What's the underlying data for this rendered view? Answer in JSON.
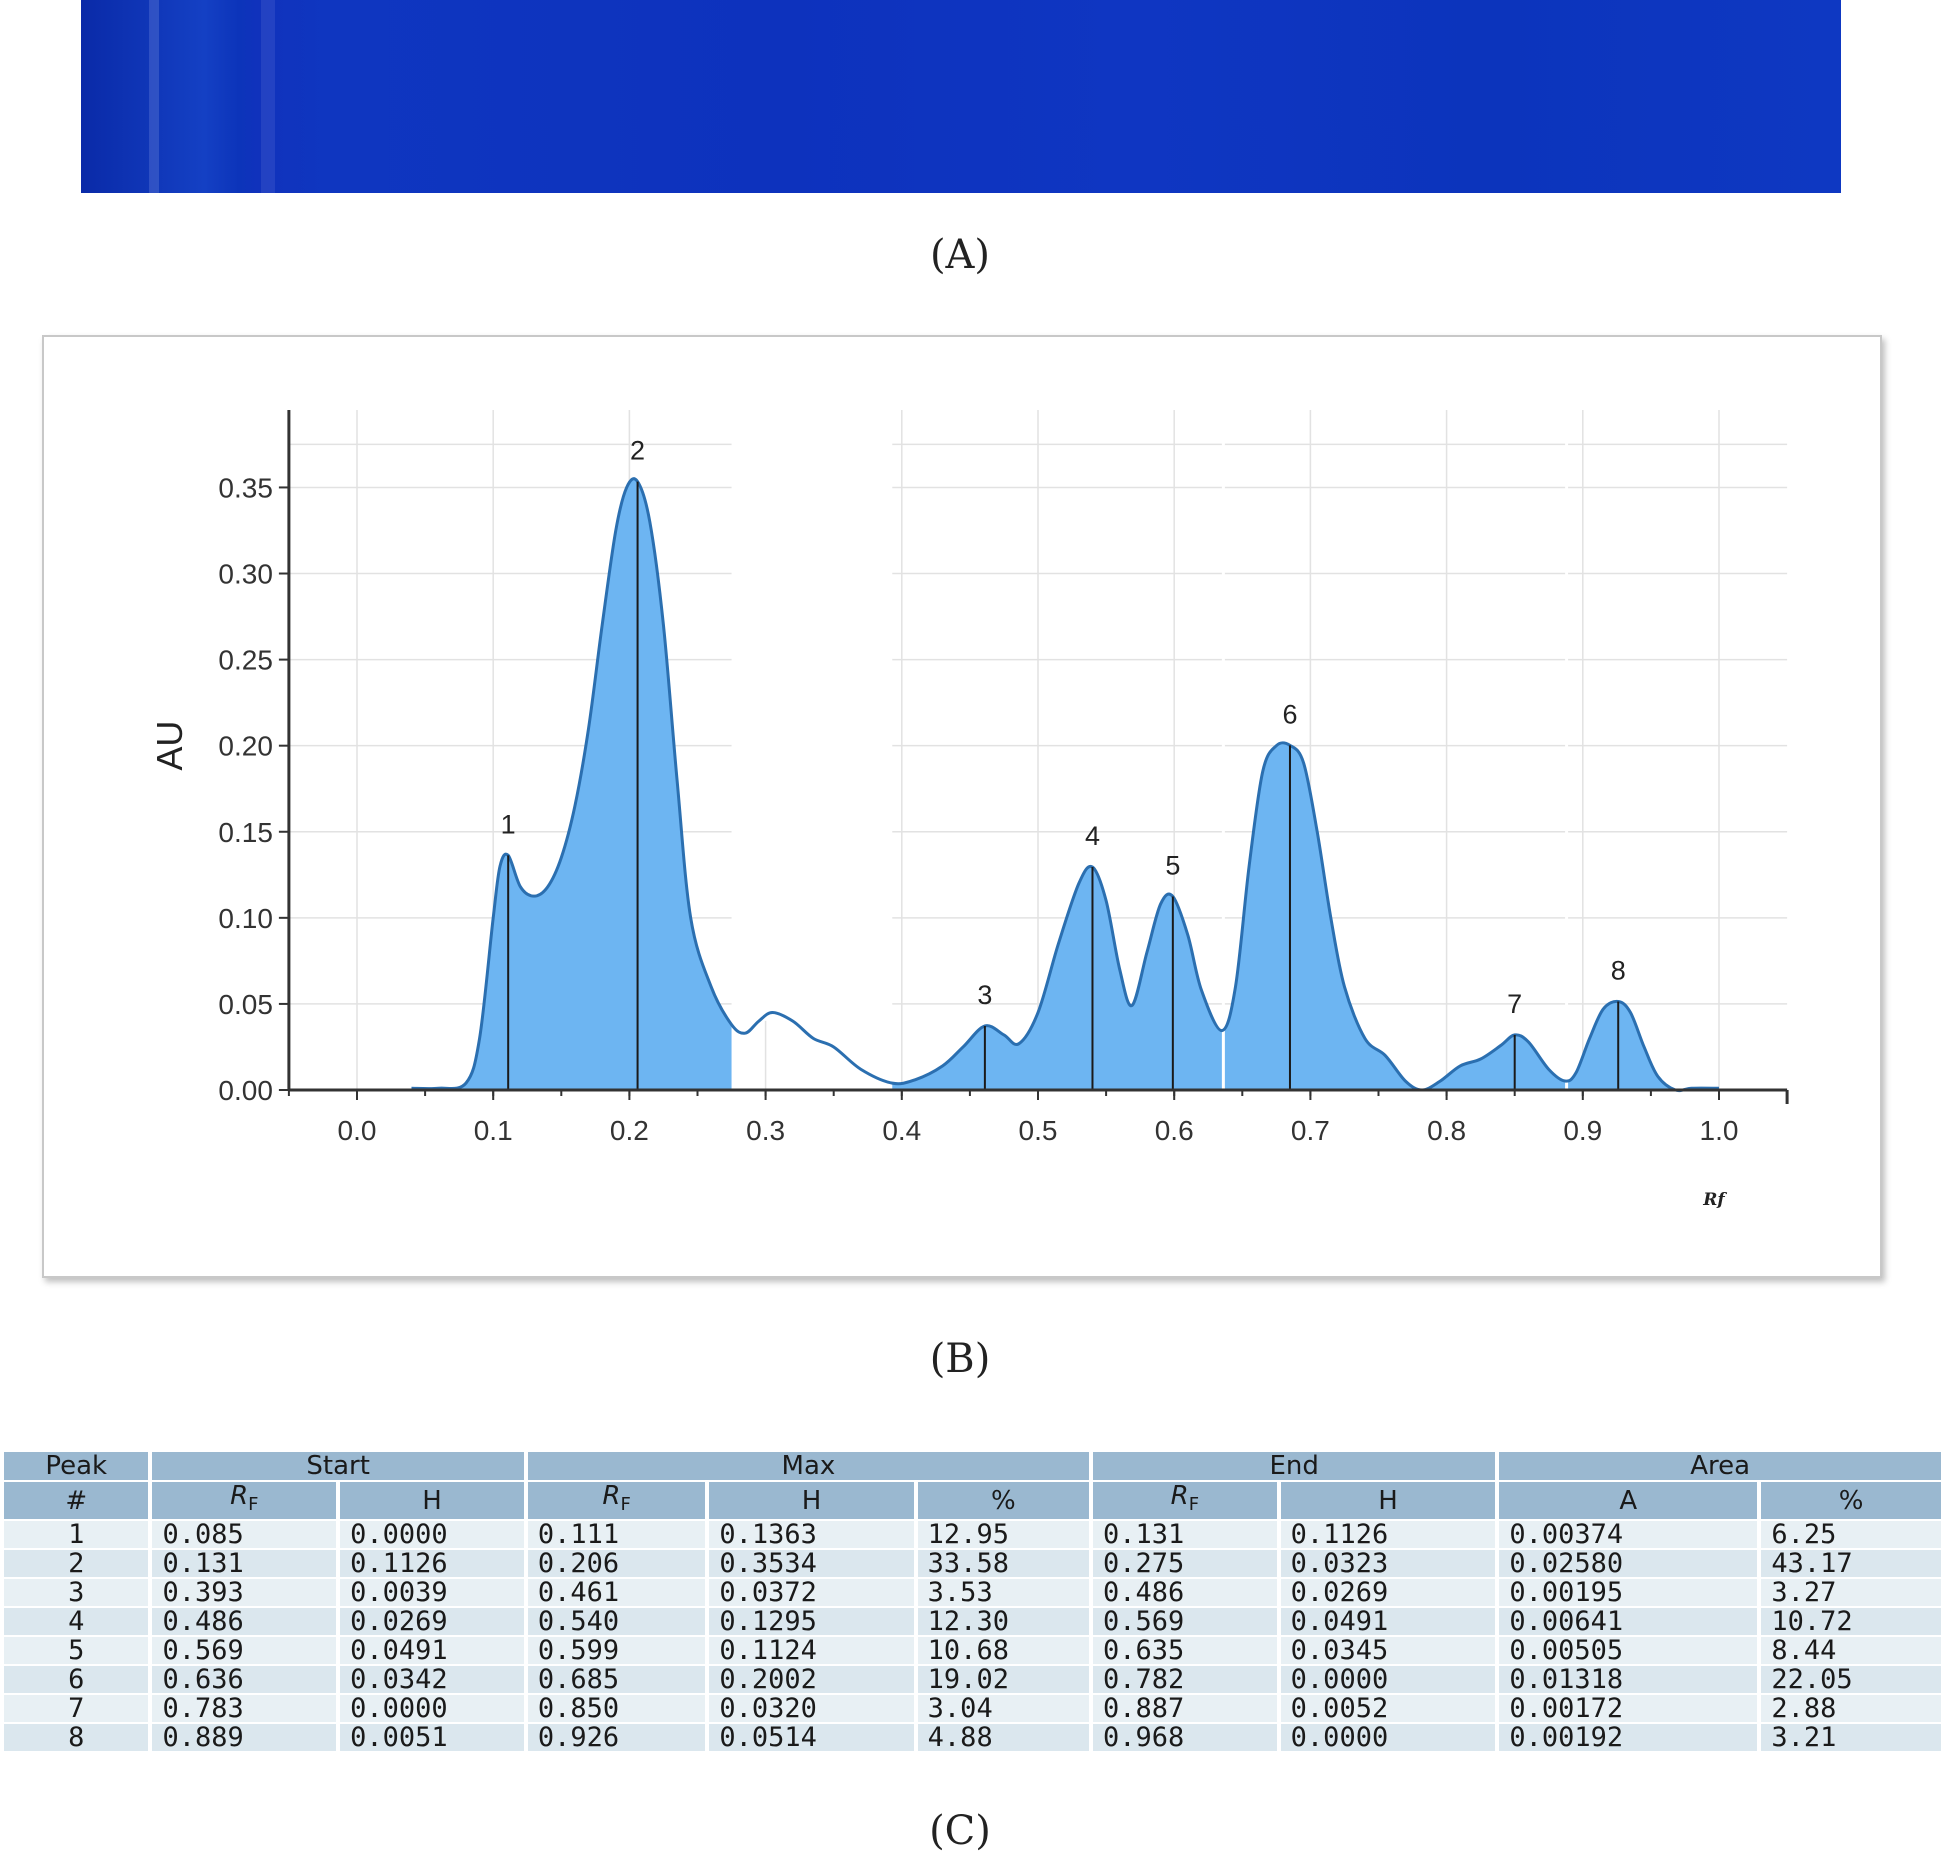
{
  "panels": {
    "a_label": "(A)",
    "b_label": "(B)",
    "c_label": "(C)"
  },
  "colors": {
    "plate": "#0f36c0",
    "fill": "#6db5f2",
    "stroke": "#2b6fb0",
    "table_header": "#9ab8d0",
    "table_row": "#e8f0f4"
  },
  "chart_data": {
    "type": "area",
    "title": "",
    "xlabel": "Rf",
    "ylabel": "AU",
    "xlim": [
      -0.05,
      1.05
    ],
    "ylim": [
      0,
      0.395
    ],
    "x_ticks": [
      "0.0",
      "0.1",
      "0.2",
      "0.3",
      "0.4",
      "0.5",
      "0.6",
      "0.7",
      "0.8",
      "0.9",
      "1.0"
    ],
    "y_ticks": [
      "0.00",
      "0.05",
      "0.10",
      "0.15",
      "0.20",
      "0.25",
      "0.30",
      "0.35"
    ],
    "grid": true,
    "curve": {
      "x": [
        0.04,
        0.06,
        0.08,
        0.09,
        0.1,
        0.105,
        0.111,
        0.12,
        0.13,
        0.14,
        0.15,
        0.16,
        0.17,
        0.18,
        0.19,
        0.198,
        0.206,
        0.215,
        0.225,
        0.235,
        0.245,
        0.26,
        0.275,
        0.285,
        0.295,
        0.305,
        0.32,
        0.335,
        0.35,
        0.37,
        0.393,
        0.41,
        0.43,
        0.445,
        0.461,
        0.475,
        0.486,
        0.5,
        0.515,
        0.53,
        0.54,
        0.55,
        0.56,
        0.569,
        0.58,
        0.59,
        0.599,
        0.61,
        0.62,
        0.635,
        0.645,
        0.655,
        0.665,
        0.675,
        0.685,
        0.695,
        0.705,
        0.715,
        0.725,
        0.74,
        0.755,
        0.77,
        0.782,
        0.795,
        0.81,
        0.825,
        0.84,
        0.85,
        0.86,
        0.875,
        0.887,
        0.895,
        0.905,
        0.915,
        0.926,
        0.935,
        0.945,
        0.955,
        0.968,
        0.98,
        1.0
      ],
      "y": [
        0.001,
        0.001,
        0.004,
        0.03,
        0.1,
        0.13,
        0.1363,
        0.118,
        0.1126,
        0.118,
        0.135,
        0.165,
        0.21,
        0.27,
        0.325,
        0.35,
        0.3534,
        0.33,
        0.27,
        0.18,
        0.1,
        0.06,
        0.038,
        0.033,
        0.04,
        0.045,
        0.04,
        0.03,
        0.025,
        0.012,
        0.004,
        0.006,
        0.014,
        0.025,
        0.0372,
        0.032,
        0.0269,
        0.045,
        0.085,
        0.12,
        0.1295,
        0.11,
        0.07,
        0.0491,
        0.08,
        0.108,
        0.1124,
        0.09,
        0.058,
        0.0345,
        0.06,
        0.13,
        0.185,
        0.2,
        0.2002,
        0.19,
        0.15,
        0.1,
        0.06,
        0.03,
        0.02,
        0.005,
        0.0,
        0.005,
        0.014,
        0.018,
        0.026,
        0.032,
        0.028,
        0.012,
        0.0052,
        0.01,
        0.03,
        0.047,
        0.0514,
        0.045,
        0.025,
        0.008,
        0.0,
        0.001,
        0.001
      ]
    },
    "unfilled_gaps": [
      [
        0.275,
        0.393
      ],
      [
        0.635,
        0.636
      ],
      [
        0.887,
        0.889
      ]
    ],
    "peaks": [
      {
        "label": "1",
        "x": 0.111,
        "y": 0.1363
      },
      {
        "label": "2",
        "x": 0.206,
        "y": 0.3534
      },
      {
        "label": "3",
        "x": 0.461,
        "y": 0.0372
      },
      {
        "label": "4",
        "x": 0.54,
        "y": 0.1295
      },
      {
        "label": "5",
        "x": 0.599,
        "y": 0.1124
      },
      {
        "label": "6",
        "x": 0.685,
        "y": 0.2002
      },
      {
        "label": "7",
        "x": 0.85,
        "y": 0.032
      },
      {
        "label": "8",
        "x": 0.926,
        "y": 0.0514
      }
    ]
  },
  "table": {
    "group_headers": {
      "peak": "Peak",
      "peak_sub": "#",
      "start": "Start",
      "max": "Max",
      "end": "End",
      "area": "Area"
    },
    "sub_headers": {
      "rf": "R",
      "rf_sub": "F",
      "h": "H",
      "pct": "%",
      "a": "A"
    },
    "rows": [
      [
        "1",
        "0.085",
        "0.0000",
        "0.111",
        "0.1363",
        "12.95",
        "0.131",
        "0.1126",
        "0.00374",
        "6.25"
      ],
      [
        "2",
        "0.131",
        "0.1126",
        "0.206",
        "0.3534",
        "33.58",
        "0.275",
        "0.0323",
        "0.02580",
        "43.17"
      ],
      [
        "3",
        "0.393",
        "0.0039",
        "0.461",
        "0.0372",
        "3.53",
        "0.486",
        "0.0269",
        "0.00195",
        "3.27"
      ],
      [
        "4",
        "0.486",
        "0.0269",
        "0.540",
        "0.1295",
        "12.30",
        "0.569",
        "0.0491",
        "0.00641",
        "10.72"
      ],
      [
        "5",
        "0.569",
        "0.0491",
        "0.599",
        "0.1124",
        "10.68",
        "0.635",
        "0.0345",
        "0.00505",
        "8.44"
      ],
      [
        "6",
        "0.636",
        "0.0342",
        "0.685",
        "0.2002",
        "19.02",
        "0.782",
        "0.0000",
        "0.01318",
        "22.05"
      ],
      [
        "7",
        "0.783",
        "0.0000",
        "0.850",
        "0.0320",
        "3.04",
        "0.887",
        "0.0052",
        "0.00172",
        "2.88"
      ],
      [
        "8",
        "0.889",
        "0.0051",
        "0.926",
        "0.0514",
        "4.88",
        "0.968",
        "0.0000",
        "0.00192",
        "3.21"
      ]
    ]
  }
}
